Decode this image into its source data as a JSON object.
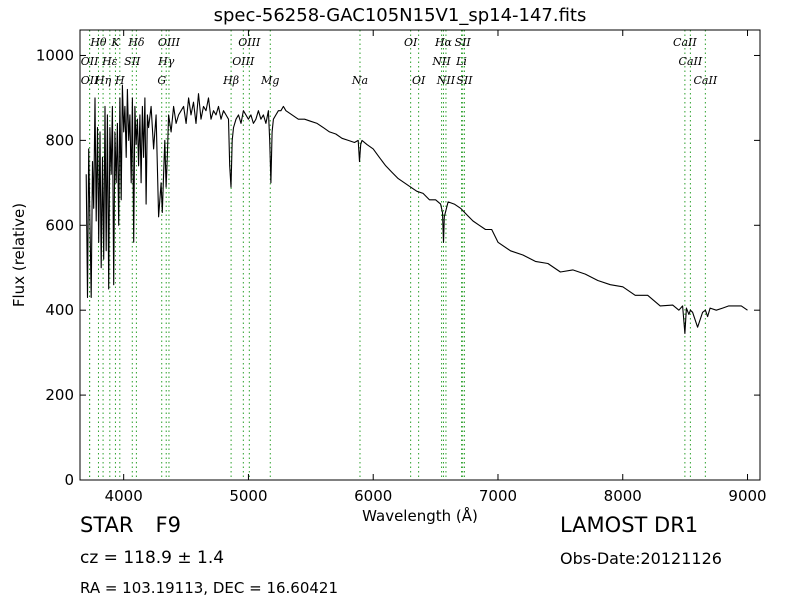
{
  "figure": {
    "title": "spec-56258-GAC105N15V1_sp14-147.fits"
  },
  "info": {
    "object_class": "STAR",
    "subclass": "F9",
    "survey": "LAMOST DR1",
    "cz_text": "cz = 118.9 ± 1.4",
    "obs_date_text": "Obs-Date:20121126",
    "radec_text": "RA = 103.19113, DEC = 16.60421"
  },
  "chart_data": {
    "type": "line",
    "title": "spec-56258-GAC105N15V1_sp14-147.fits",
    "xlabel": "Wavelength (Å)",
    "ylabel": "Flux (relative)",
    "xlim": [
      3650,
      9100
    ],
    "ylim": [
      0,
      1060
    ],
    "x_ticks": [
      4000,
      5000,
      6000,
      7000,
      8000,
      9000
    ],
    "y_ticks": [
      0,
      200,
      400,
      600,
      800,
      1000
    ],
    "grid": false,
    "series": [
      {
        "color": "#000000",
        "x": [
          3700,
          3710,
          3720,
          3730,
          3740,
          3750,
          3760,
          3770,
          3780,
          3790,
          3800,
          3810,
          3820,
          3830,
          3840,
          3850,
          3860,
          3870,
          3880,
          3890,
          3900,
          3910,
          3920,
          3930,
          3940,
          3950,
          3960,
          3970,
          3980,
          3990,
          4000,
          4010,
          4020,
          4030,
          4040,
          4050,
          4060,
          4070,
          4080,
          4090,
          4100,
          4110,
          4120,
          4130,
          4140,
          4150,
          4160,
          4170,
          4180,
          4190,
          4200,
          4220,
          4240,
          4260,
          4280,
          4300,
          4310,
          4320,
          4330,
          4340,
          4350,
          4360,
          4380,
          4400,
          4420,
          4440,
          4460,
          4480,
          4500,
          4520,
          4540,
          4560,
          4580,
          4600,
          4620,
          4640,
          4660,
          4680,
          4700,
          4720,
          4740,
          4760,
          4780,
          4800,
          4820,
          4840,
          4850,
          4860,
          4870,
          4880,
          4900,
          4920,
          4940,
          4960,
          4980,
          5000,
          5020,
          5040,
          5060,
          5080,
          5100,
          5120,
          5140,
          5160,
          5170,
          5180,
          5190,
          5200,
          5220,
          5240,
          5260,
          5280,
          5300,
          5350,
          5400,
          5450,
          5500,
          5550,
          5600,
          5650,
          5700,
          5750,
          5800,
          5850,
          5880,
          5890,
          5900,
          5910,
          5950,
          6000,
          6050,
          6100,
          6150,
          6200,
          6250,
          6300,
          6350,
          6400,
          6450,
          6500,
          6540,
          6555,
          6563,
          6570,
          6600,
          6650,
          6700,
          6750,
          6800,
          6850,
          6900,
          6950,
          7000,
          7100,
          7200,
          7300,
          7400,
          7500,
          7600,
          7700,
          7800,
          7900,
          8000,
          8100,
          8200,
          8300,
          8400,
          8450,
          8480,
          8498,
          8510,
          8530,
          8542,
          8560,
          8600,
          8640,
          8662,
          8680,
          8700,
          8750,
          8800,
          8850,
          8900,
          8950,
          9000
        ],
        "y": [
          720,
          430,
          780,
          600,
          430,
          750,
          640,
          900,
          610,
          830,
          560,
          820,
          500,
          760,
          520,
          880,
          540,
          860,
          450,
          830,
          720,
          880,
          460,
          820,
          700,
          840,
          600,
          900,
          660,
          930,
          820,
          880,
          760,
          920,
          800,
          860,
          700,
          900,
          560,
          880,
          790,
          850,
          740,
          860,
          700,
          880,
          760,
          900,
          650,
          860,
          830,
          880,
          780,
          860,
          620,
          700,
          630,
          720,
          800,
          690,
          760,
          860,
          820,
          880,
          840,
          860,
          870,
          880,
          840,
          900,
          860,
          890,
          840,
          910,
          850,
          880,
          870,
          900,
          850,
          870,
          860,
          880,
          850,
          870,
          860,
          850,
          740,
          690,
          800,
          830,
          850,
          860,
          840,
          870,
          860,
          850,
          860,
          840,
          850,
          870,
          850,
          860,
          840,
          870,
          800,
          700,
          820,
          850,
          860,
          870,
          870,
          880,
          870,
          860,
          850,
          850,
          845,
          840,
          830,
          820,
          815,
          805,
          800,
          795,
          800,
          750,
          790,
          800,
          790,
          780,
          760,
          740,
          725,
          710,
          700,
          690,
          680,
          675,
          660,
          660,
          650,
          630,
          560,
          620,
          655,
          650,
          640,
          625,
          610,
          600,
          590,
          590,
          560,
          540,
          530,
          515,
          510,
          490,
          495,
          485,
          470,
          460,
          455,
          435,
          435,
          410,
          412,
          400,
          410,
          345,
          405,
          390,
          400,
          395,
          360,
          395,
          400,
          385,
          405,
          400,
          405,
          410,
          410,
          410,
          400
        ]
      }
    ],
    "annotations": [
      {
        "label": "Hθ",
        "x": 3798
      },
      {
        "label": "OII",
        "x": 3727
      },
      {
        "label": "OII",
        "x": 3727
      },
      {
        "label": "Hη",
        "x": 3835
      },
      {
        "label": "K",
        "x": 3934
      },
      {
        "label": "Hε",
        "x": 3889
      },
      {
        "label": "SII",
        "x": 4069
      },
      {
        "label": "H",
        "x": 3969
      },
      {
        "label": "Hδ",
        "x": 4102
      },
      {
        "label": "OIII",
        "x": 4363
      },
      {
        "label": "Hγ",
        "x": 4341
      },
      {
        "label": "G",
        "x": 4305
      },
      {
        "label": "OIII",
        "x": 5007
      },
      {
        "label": "OIII",
        "x": 4959
      },
      {
        "label": "Hβ",
        "x": 4861
      },
      {
        "label": "Mg",
        "x": 5175
      },
      {
        "label": "Na",
        "x": 5894
      },
      {
        "label": "OI",
        "x": 6300
      },
      {
        "label": "OI",
        "x": 6364
      },
      {
        "label": "Hα",
        "x": 6563
      },
      {
        "label": "SII",
        "x": 6717
      },
      {
        "label": "NII",
        "x": 6548
      },
      {
        "label": "Li",
        "x": 6708
      },
      {
        "label": "NII",
        "x": 6583
      },
      {
        "label": "SII",
        "x": 6731
      },
      {
        "label": "CaII",
        "x": 8498
      },
      {
        "label": "CaII",
        "x": 8542
      },
      {
        "label": "CaII",
        "x": 8662
      }
    ],
    "line_color": "#2ca02c"
  }
}
